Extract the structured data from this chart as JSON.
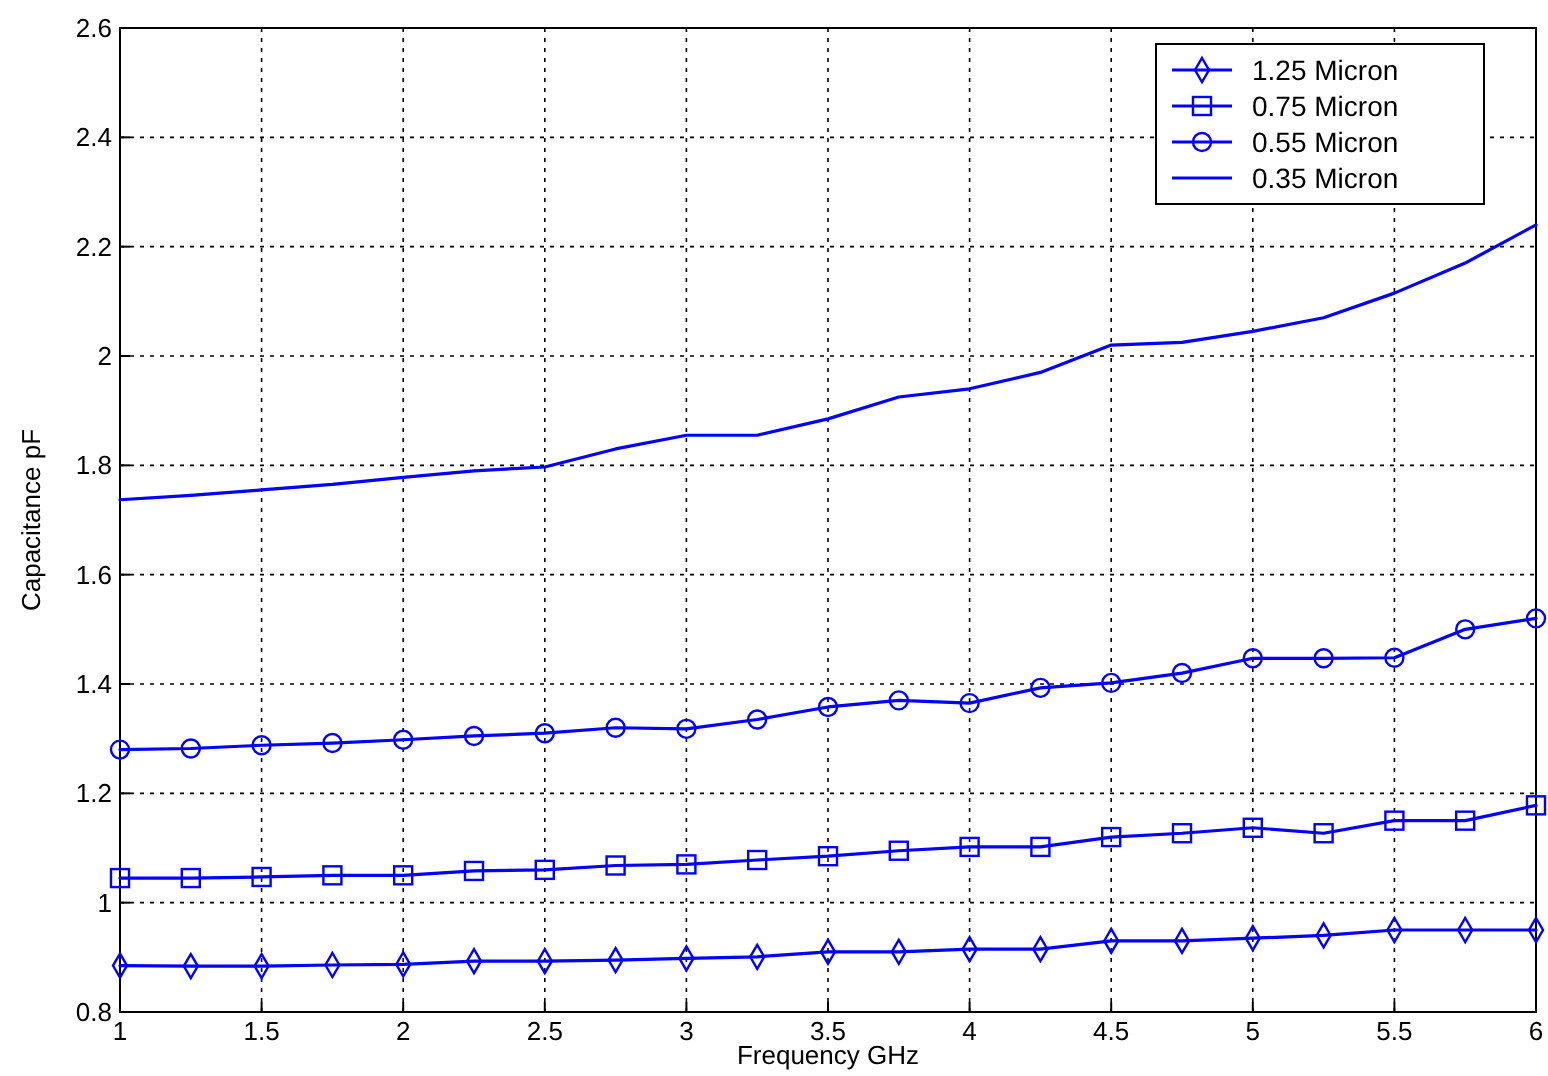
{
  "chart_data": {
    "type": "line",
    "xlabel": "Frequency GHz",
    "ylabel": "Capacitance pF",
    "x": [
      1,
      1.25,
      1.5,
      1.75,
      2,
      2.25,
      2.5,
      2.75,
      3,
      3.25,
      3.5,
      3.75,
      4,
      4.25,
      4.5,
      4.75,
      5,
      5.25,
      5.5,
      5.75,
      6
    ],
    "series": [
      {
        "name": "1.25 Micron",
        "color": "#0000ff",
        "marker": "diamond",
        "values": [
          0.885,
          0.884,
          0.884,
          0.886,
          0.887,
          0.893,
          0.893,
          0.895,
          0.898,
          0.901,
          0.91,
          0.91,
          0.915,
          0.915,
          0.93,
          0.93,
          0.935,
          0.94,
          0.95,
          0.95,
          0.95
        ]
      },
      {
        "name": "0.75 Micron",
        "color": "#0000ff",
        "marker": "square",
        "values": [
          1.045,
          1.045,
          1.047,
          1.05,
          1.05,
          1.058,
          1.06,
          1.068,
          1.07,
          1.078,
          1.085,
          1.095,
          1.102,
          1.102,
          1.12,
          1.127,
          1.137,
          1.127,
          1.15,
          1.15,
          1.178
        ]
      },
      {
        "name": "0.55 Micron",
        "color": "#0000ff",
        "marker": "circle",
        "values": [
          1.28,
          1.282,
          1.288,
          1.292,
          1.298,
          1.305,
          1.31,
          1.32,
          1.318,
          1.335,
          1.358,
          1.37,
          1.365,
          1.393,
          1.402,
          1.42,
          1.447,
          1.447,
          1.448,
          1.5,
          1.52
        ]
      },
      {
        "name": "0.35 Micron",
        "color": "#0000ff",
        "marker": "none",
        "values": [
          1.737,
          1.745,
          1.755,
          1.765,
          1.778,
          1.79,
          1.797,
          1.83,
          1.855,
          1.855,
          1.885,
          1.925,
          1.94,
          1.97,
          2.02,
          2.025,
          2.045,
          2.07,
          2.115,
          2.17,
          2.24
        ]
      }
    ],
    "xlim": [
      1,
      6
    ],
    "xticks": [
      1,
      1.5,
      2,
      2.5,
      3,
      3.5,
      4,
      4.5,
      5,
      5.5,
      6
    ],
    "ylim": [
      0.8,
      2.6
    ],
    "yticks": [
      0.8,
      1,
      1.2,
      1.4,
      1.6,
      1.8,
      2,
      2.2,
      2.4,
      2.6
    ],
    "grid": true,
    "legend": "top right",
    "line_style": "solid"
  }
}
